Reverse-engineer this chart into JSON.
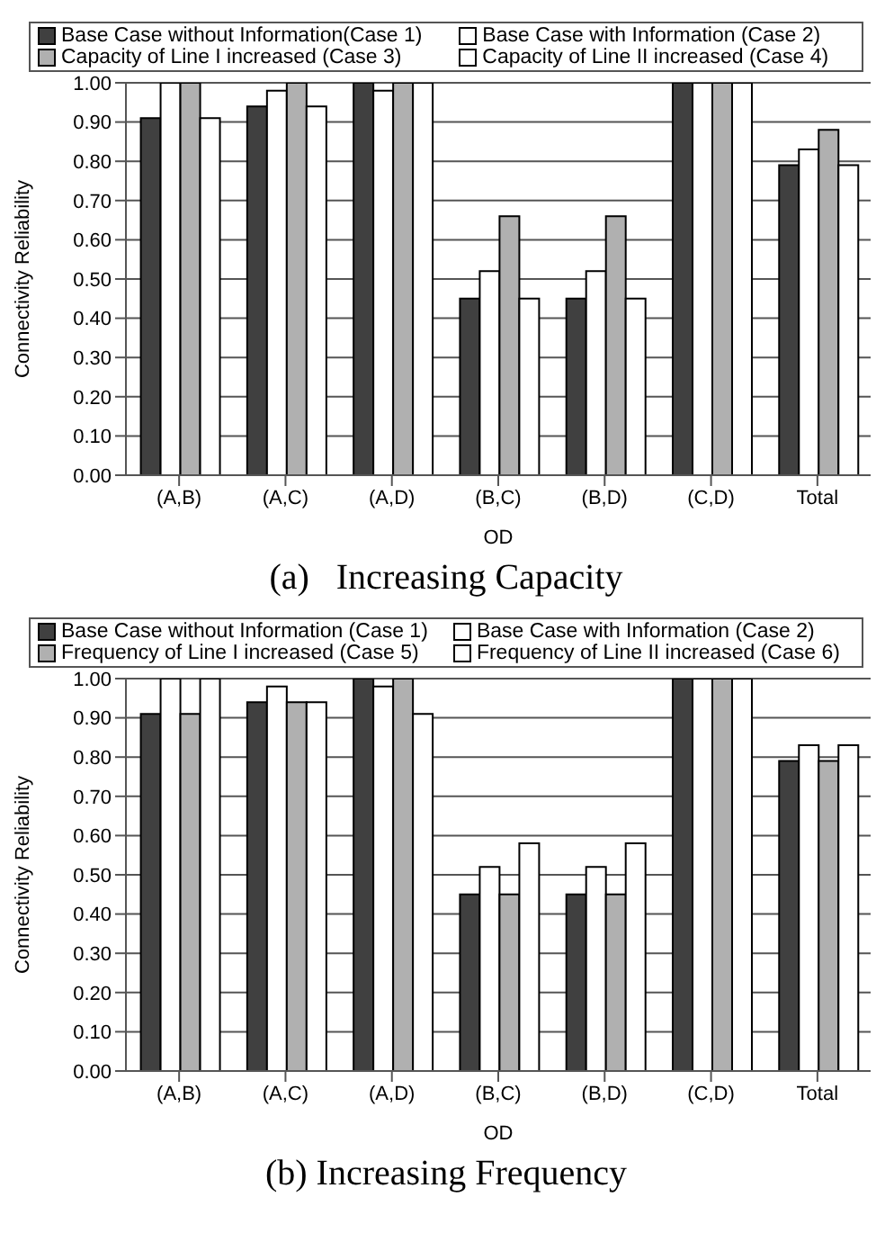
{
  "chart_data": [
    {
      "type": "bar",
      "title": "(a)   Increasing Capacity",
      "xlabel": "OD",
      "ylabel": "Connectivity Reliability",
      "categories": [
        "(A,B)",
        "(A,C)",
        "(A,D)",
        "(B,C)",
        "(B,D)",
        "(C,D)",
        "Total"
      ],
      "series": [
        {
          "name": "Base Case without Information(Case 1)",
          "color": "#404040",
          "values": [
            0.91,
            0.94,
            1.0,
            0.45,
            0.45,
            1.0,
            0.79
          ]
        },
        {
          "name": "Base Case with Information (Case 2)",
          "color": "#ffffff",
          "values": [
            1.0,
            0.98,
            0.98,
            0.52,
            0.52,
            1.0,
            0.83
          ]
        },
        {
          "name": "Capacity of Line I increased (Case 3)",
          "color": "#b0b0b0",
          "values": [
            1.0,
            1.0,
            1.0,
            0.66,
            0.66,
            1.0,
            0.88
          ]
        },
        {
          "name": "Capacity of Line II increased (Case 4)",
          "color": "#ffffff",
          "values": [
            0.91,
            0.94,
            1.0,
            0.45,
            0.45,
            1.0,
            0.79
          ]
        }
      ],
      "ylim": [
        0,
        1
      ],
      "yticks": [
        {
          "value": 0,
          "label": "0.00"
        },
        {
          "value": 0.1,
          "label": "0.10"
        },
        {
          "value": 0.2,
          "label": "0.20"
        },
        {
          "value": 0.3,
          "label": "0.30"
        },
        {
          "value": 0.4,
          "label": "0.40"
        },
        {
          "value": 0.5,
          "label": "0.50"
        },
        {
          "value": 0.6,
          "label": "0.60"
        },
        {
          "value": 0.7,
          "label": "0.70"
        },
        {
          "value": 0.8,
          "label": "0.80"
        },
        {
          "value": 0.9,
          "label": "0.90"
        },
        {
          "value": 1,
          "label": "1.00"
        }
      ],
      "grid": "y",
      "legend": "top"
    },
    {
      "type": "bar",
      "title": "(b) Increasing Frequency",
      "xlabel": "OD",
      "ylabel": "Connectivity Reliability",
      "categories": [
        "(A,B)",
        "(A,C)",
        "(A,D)",
        "(B,C)",
        "(B,D)",
        "(C,D)",
        "Total"
      ],
      "series": [
        {
          "name": "Base Case without Information (Case 1)",
          "color": "#404040",
          "values": [
            0.91,
            0.94,
            1.0,
            0.45,
            0.45,
            1.0,
            0.79
          ]
        },
        {
          "name": "Base Case with Information (Case 2)",
          "color": "#ffffff",
          "values": [
            1.0,
            0.98,
            0.98,
            0.52,
            0.52,
            1.0,
            0.83
          ]
        },
        {
          "name": "Frequency of Line I increased (Case 5)",
          "color": "#b0b0b0",
          "values": [
            0.91,
            0.94,
            1.0,
            0.45,
            0.45,
            1.0,
            0.79
          ]
        },
        {
          "name": "Frequency of Line II increased (Case 6)",
          "color": "#ffffff",
          "values": [
            1.0,
            0.94,
            0.91,
            0.58,
            0.58,
            1.0,
            0.83
          ]
        }
      ],
      "ylim": [
        0,
        1
      ],
      "yticks": [
        {
          "value": 0,
          "label": "0.00"
        },
        {
          "value": 0.1,
          "label": "0.10"
        },
        {
          "value": 0.2,
          "label": "0.20"
        },
        {
          "value": 0.3,
          "label": "0.30"
        },
        {
          "value": 0.4,
          "label": "0.40"
        },
        {
          "value": 0.5,
          "label": "0.50"
        },
        {
          "value": 0.6,
          "label": "0.60"
        },
        {
          "value": 0.7,
          "label": "0.70"
        },
        {
          "value": 0.8,
          "label": "0.80"
        },
        {
          "value": 0.9,
          "label": "0.90"
        },
        {
          "value": 1,
          "label": "1.00"
        }
      ],
      "grid": "y",
      "legend": "top"
    }
  ]
}
